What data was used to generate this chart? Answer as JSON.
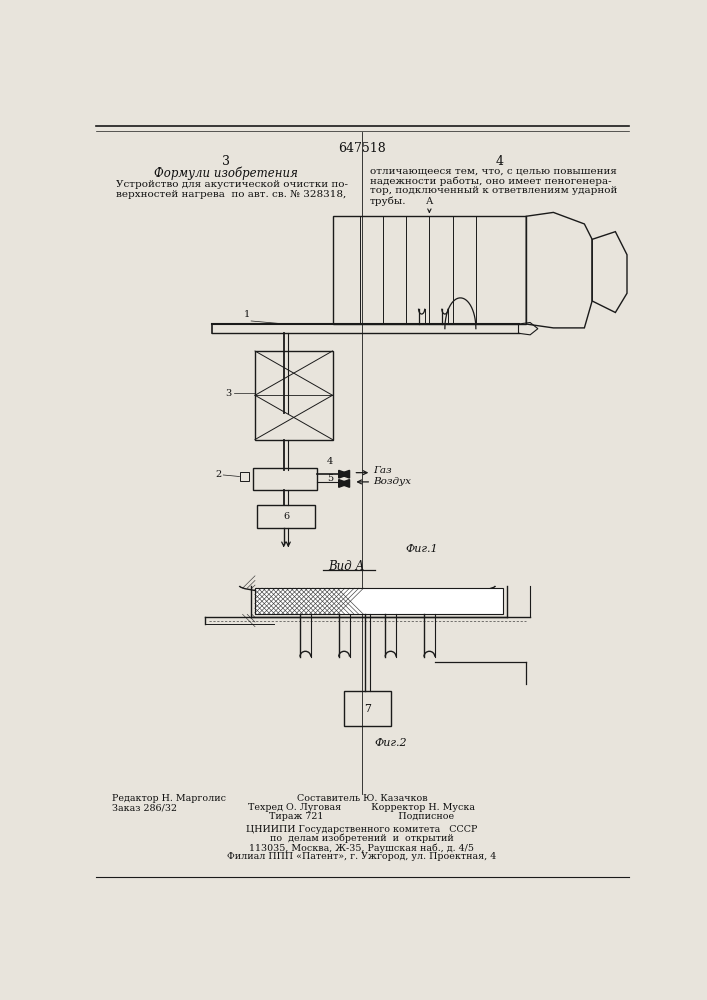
{
  "page_number_center": "647518",
  "page_col_left": "3",
  "page_col_right": "4",
  "header_left_italic": "Формули изобретения",
  "text_left": [
    "Устройство для акустической очистки по-",
    "верхностей нагрева  по авт. св. № 328318,"
  ],
  "text_right": [
    "отличающееся тем, что, с целью повышения",
    "надежности работы, оно имеет пеногенера-",
    "тор, подключенный к ответвлениям ударной",
    "трубы."
  ],
  "fig1_caption": "Фиг.1",
  "fig2_label": "Вид А",
  "fig2_caption": "Фиг.2",
  "label_A": "А",
  "label_1": "1",
  "label_2": "2",
  "label_3": "3",
  "label_4": "4",
  "label_5": "5",
  "label_6": "6",
  "label_7": "7",
  "gas_label": "Газ",
  "air_label": "Воздух",
  "footer_left_col1": [
    "Редактор Н. Марголис",
    "Заказ 286/32"
  ],
  "footer_center_col": [
    "Составитель Ю. Казачков",
    "Техред О. Луговая          Корректор Н. Муска",
    "Тираж 721                         Подписное"
  ],
  "footer_center_bottom": [
    "ЦНИИПИ Государственного комитета   СССР",
    "по  делам изобретений  и  открытий",
    "113035, Москва, Ж-35, Раушская наб., д. 4/5",
    "Филиал ППП «Патент», г. Ужгород, ул. Проектная, 4"
  ],
  "bg_color": "#e8e4dc",
  "line_color": "#1a1a1a",
  "text_color": "#111111"
}
